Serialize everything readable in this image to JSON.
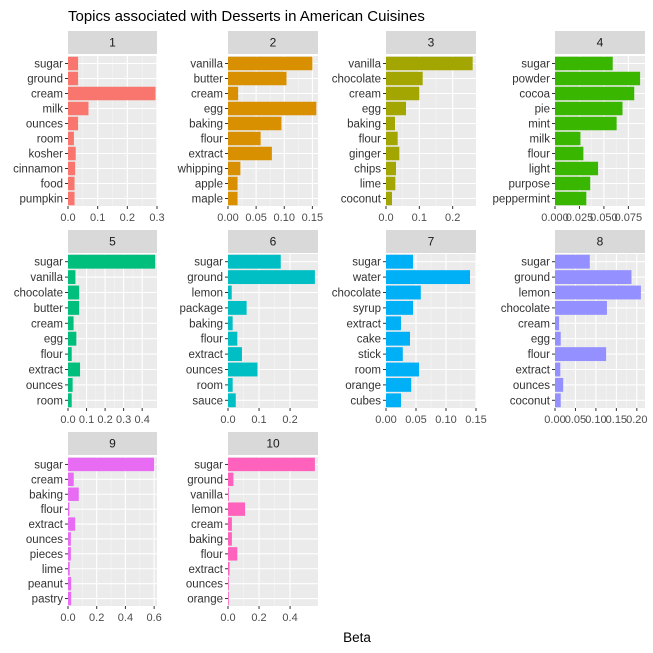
{
  "chart_data": {
    "type": "bar",
    "title": "Topics associated with Desserts in American Cuisines",
    "xlabel": "Beta",
    "ylabel": "",
    "facets": [
      {
        "label": "1",
        "color": "#F8766D",
        "xlim": [
          0,
          0.3
        ],
        "ticks": [
          0,
          0.1,
          0.2,
          0.3
        ],
        "tick_labels": [
          "0.0",
          "0.1",
          "0.2",
          "0.3"
        ],
        "categories": [
          "sugar",
          "ground",
          "cream",
          "milk",
          "ounces",
          "room",
          "kosher",
          "cinnamon",
          "food",
          "pumpkin"
        ],
        "values": [
          0.034,
          0.034,
          0.295,
          0.069,
          0.034,
          0.02,
          0.026,
          0.024,
          0.022,
          0.022
        ]
      },
      {
        "label": "2",
        "color": "#D89000",
        "xlim": [
          0,
          0.16
        ],
        "ticks": [
          0,
          0.05,
          0.1,
          0.15
        ],
        "tick_labels": [
          "0.00",
          "0.05",
          "0.10",
          "0.15"
        ],
        "categories": [
          "vanilla",
          "butter",
          "cream",
          "egg",
          "baking",
          "flour",
          "extract",
          "whipping",
          "apple",
          "maple"
        ],
        "values": [
          0.15,
          0.104,
          0.018,
          0.157,
          0.095,
          0.058,
          0.078,
          0.022,
          0.017,
          0.017
        ]
      },
      {
        "label": "3",
        "color": "#A3A500",
        "xlim": [
          0,
          0.27
        ],
        "ticks": [
          0,
          0.1,
          0.2
        ],
        "tick_labels": [
          "0.0",
          "0.1",
          "0.2"
        ],
        "categories": [
          "vanilla",
          "chocolate",
          "cream",
          "egg",
          "baking",
          "flour",
          "ginger",
          "chips",
          "lime",
          "coconut"
        ],
        "values": [
          0.26,
          0.11,
          0.1,
          0.06,
          0.027,
          0.035,
          0.04,
          0.03,
          0.028,
          0.018
        ]
      },
      {
        "label": "4",
        "color": "#39B600",
        "xlim": [
          0,
          0.092
        ],
        "ticks": [
          0,
          0.025,
          0.05,
          0.075
        ],
        "tick_labels": [
          "0.000",
          "0.025",
          "0.050",
          "0.075"
        ],
        "categories": [
          "sugar",
          "powder",
          "cocoa",
          "pie",
          "mint",
          "milk",
          "flour",
          "light",
          "purpose",
          "peppermint"
        ],
        "values": [
          0.059,
          0.087,
          0.081,
          0.069,
          0.063,
          0.026,
          0.029,
          0.044,
          0.036,
          0.032
        ]
      },
      {
        "label": "5",
        "color": "#00BF7D",
        "xlim": [
          0,
          0.48
        ],
        "ticks": [
          0,
          0.1,
          0.2,
          0.3,
          0.4
        ],
        "tick_labels": [
          "0.0",
          "0.1",
          "0.2",
          "0.3",
          "0.4"
        ],
        "categories": [
          "sugar",
          "vanilla",
          "chocolate",
          "butter",
          "cream",
          "egg",
          "flour",
          "extract",
          "ounces",
          "room"
        ],
        "values": [
          0.47,
          0.04,
          0.06,
          0.06,
          0.03,
          0.045,
          0.02,
          0.065,
          0.025,
          0.02
        ]
      },
      {
        "label": "6",
        "color": "#00BFC4",
        "xlim": [
          0,
          0.29
        ],
        "ticks": [
          0,
          0.1,
          0.2
        ],
        "tick_labels": [
          "0.0",
          "0.1",
          "0.2"
        ],
        "categories": [
          "sugar",
          "ground",
          "lemon",
          "package",
          "baking",
          "flour",
          "extract",
          "ounces",
          "room",
          "sauce"
        ],
        "values": [
          0.17,
          0.28,
          0.012,
          0.06,
          0.015,
          0.03,
          0.045,
          0.095,
          0.015,
          0.025
        ]
      },
      {
        "label": "7",
        "color": "#00B0F6",
        "xlim": [
          0,
          0.15
        ],
        "ticks": [
          0,
          0.05,
          0.1,
          0.15
        ],
        "tick_labels": [
          "0.00",
          "0.05",
          "0.10",
          "0.15"
        ],
        "categories": [
          "sugar",
          "water",
          "chocolate",
          "syrup",
          "extract",
          "cake",
          "stick",
          "room",
          "orange",
          "cubes"
        ],
        "values": [
          0.045,
          0.14,
          0.058,
          0.045,
          0.025,
          0.04,
          0.028,
          0.055,
          0.042,
          0.025
        ]
      },
      {
        "label": "8",
        "color": "#9590FF",
        "xlim": [
          0,
          0.22
        ],
        "ticks": [
          0,
          0.05,
          0.1,
          0.15,
          0.2
        ],
        "tick_labels": [
          "0.00",
          "0.05",
          "0.10",
          "0.15",
          "0.20"
        ],
        "categories": [
          "sugar",
          "ground",
          "lemon",
          "chocolate",
          "cream",
          "egg",
          "flour",
          "extract",
          "ounces",
          "coconut"
        ],
        "values": [
          0.085,
          0.187,
          0.21,
          0.127,
          0.01,
          0.014,
          0.125,
          0.013,
          0.02,
          0.014
        ]
      },
      {
        "label": "9",
        "color": "#E76BF3",
        "xlim": [
          0,
          0.62
        ],
        "ticks": [
          0,
          0.2,
          0.4,
          0.6
        ],
        "tick_labels": [
          "0.0",
          "0.2",
          "0.4",
          "0.6"
        ],
        "categories": [
          "sugar",
          "cream",
          "baking",
          "flour",
          "extract",
          "ounces",
          "pieces",
          "lime",
          "peanut",
          "pastry"
        ],
        "values": [
          0.6,
          0.04,
          0.075,
          0.01,
          0.05,
          0.02,
          0.02,
          0.012,
          0.022,
          0.022
        ]
      },
      {
        "label": "10",
        "color": "#FF62BC",
        "xlim": [
          0,
          0.58
        ],
        "ticks": [
          0,
          0.2,
          0.4
        ],
        "tick_labels": [
          "0.0",
          "0.2",
          "0.4"
        ],
        "categories": [
          "sugar",
          "ground",
          "vanilla",
          "lemon",
          "cream",
          "baking",
          "flour",
          "extract",
          "ounces",
          "orange"
        ],
        "values": [
          0.56,
          0.035,
          0.005,
          0.11,
          0.025,
          0.025,
          0.06,
          0.01,
          0.005,
          0.005
        ]
      }
    ]
  }
}
